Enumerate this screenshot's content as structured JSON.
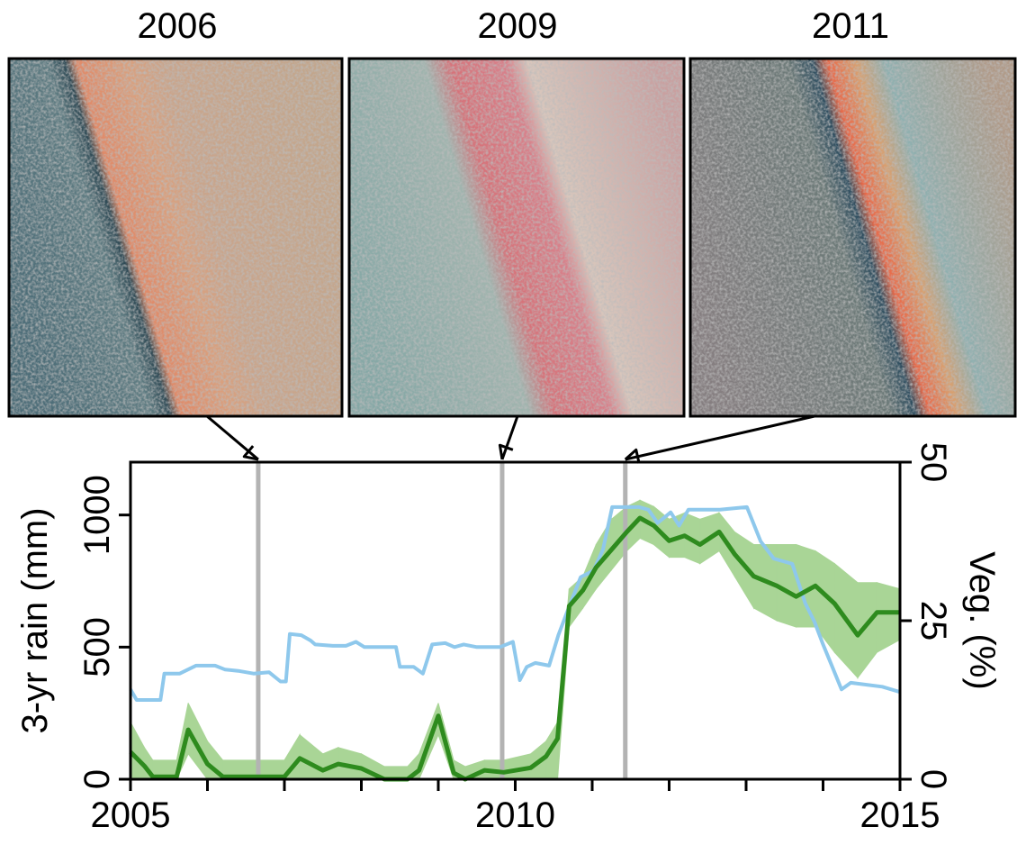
{
  "panels": [
    {
      "title": "2006"
    },
    {
      "title": "2009"
    },
    {
      "title": "2011"
    }
  ],
  "chart_data": {
    "type": "line",
    "xlim": [
      2005,
      2015
    ],
    "xticks": [
      2005,
      2010,
      2015
    ],
    "xminorticks": [
      2006,
      2007,
      2008,
      2009,
      2011,
      2012,
      2013,
      2014
    ],
    "ylabel": "3-yr rain (mm)",
    "ylim": [
      0,
      1200
    ],
    "yticks": [
      0,
      500,
      1000
    ],
    "y2label": "Veg. (%)",
    "y2lim": [
      0,
      50
    ],
    "y2ticks": [
      0,
      25,
      50
    ],
    "markers": [
      2006.66,
      2009.83,
      2011.43
    ],
    "marker_color": "#b3b3b3",
    "series": [
      {
        "color": "#8ec8ec",
        "axis": "y",
        "x": [
          2005.0,
          2005.08,
          2005.39,
          2005.44,
          2005.64,
          2005.85,
          2006.1,
          2006.23,
          2006.4,
          2006.6,
          2006.8,
          2006.95,
          2007.02,
          2007.07,
          2007.22,
          2007.34,
          2007.4,
          2007.63,
          2007.8,
          2007.93,
          2008.04,
          2008.22,
          2008.45,
          2008.5,
          2008.68,
          2008.8,
          2008.92,
          2009.09,
          2009.21,
          2009.33,
          2009.5,
          2009.8,
          2009.97,
          2010.06,
          2010.15,
          2010.26,
          2010.44,
          2010.56,
          2010.67,
          2010.85,
          2011.02,
          2011.14,
          2011.26,
          2011.61,
          2011.73,
          2011.85,
          2012.02,
          2012.13,
          2012.25,
          2012.66,
          2013.01,
          2013.19,
          2013.36,
          2013.48,
          2013.6,
          2013.77,
          2013.89,
          2014.0,
          2014.12,
          2014.24,
          2014.36,
          2014.77,
          2015.0
        ],
        "values": [
          340,
          300,
          300,
          400,
          400,
          430,
          430,
          415,
          410,
          400,
          405,
          370,
          370,
          550,
          545,
          525,
          510,
          505,
          505,
          520,
          500,
          500,
          500,
          425,
          425,
          400,
          510,
          515,
          500,
          510,
          500,
          500,
          520,
          375,
          425,
          440,
          430,
          545,
          630,
          765,
          790,
          870,
          1030,
          1030,
          1020,
          970,
          1010,
          960,
          1020,
          1020,
          1030,
          900,
          835,
          825,
          815,
          665,
          595,
          510,
          425,
          340,
          365,
          350,
          330
        ]
      },
      {
        "color": "#2e8b1e",
        "band_color": "#a9d596",
        "axis": "y2",
        "x": [
          2005.0,
          2005.18,
          2005.29,
          2005.6,
          2005.75,
          2006.0,
          2006.2,
          2007.0,
          2007.2,
          2007.5,
          2007.7,
          2008.0,
          2008.3,
          2008.6,
          2008.75,
          2009.0,
          2009.2,
          2009.35,
          2009.6,
          2009.85,
          2010.2,
          2010.4,
          2010.55,
          2010.7,
          2010.88,
          2011.05,
          2011.25,
          2011.45,
          2011.62,
          2011.8,
          2012.0,
          2012.2,
          2012.4,
          2012.65,
          2012.85,
          2013.1,
          2013.4,
          2013.65,
          2013.9,
          2014.15,
          2014.45,
          2014.7,
          2015.0
        ],
        "values": [
          4.3,
          2.1,
          0.4,
          0.4,
          7.8,
          2.4,
          0.4,
          0.4,
          3.3,
          1.4,
          2.4,
          1.7,
          0,
          0,
          1.4,
          10,
          1,
          0,
          1.4,
          1.1,
          1.8,
          3.6,
          6.4,
          27.3,
          29.8,
          33.4,
          36.2,
          39,
          41.2,
          40,
          37.6,
          38.4,
          37,
          39,
          35.5,
          32,
          30.5,
          28.8,
          30.5,
          27.7,
          22.7,
          26.3,
          26.3
        ],
        "lower": [
          0,
          0,
          0,
          0,
          4,
          0,
          0,
          0,
          0,
          0,
          0,
          0,
          0,
          0,
          0,
          7,
          0,
          0,
          0,
          0,
          0,
          0,
          0,
          24,
          27,
          30,
          33,
          36,
          38,
          37,
          35,
          35,
          34,
          36,
          32,
          27,
          25,
          24,
          24,
          20,
          16,
          20,
          22
        ],
        "upper": [
          9,
          5,
          3,
          3,
          12,
          6,
          3,
          3,
          7,
          4,
          5,
          4,
          2,
          2,
          4,
          12,
          3,
          2,
          3,
          3,
          4,
          6,
          9,
          30,
          32,
          37,
          41,
          43,
          44,
          43,
          41,
          42,
          41,
          42,
          39,
          37,
          37,
          37,
          36,
          34,
          31,
          31,
          30
        ]
      }
    ]
  }
}
